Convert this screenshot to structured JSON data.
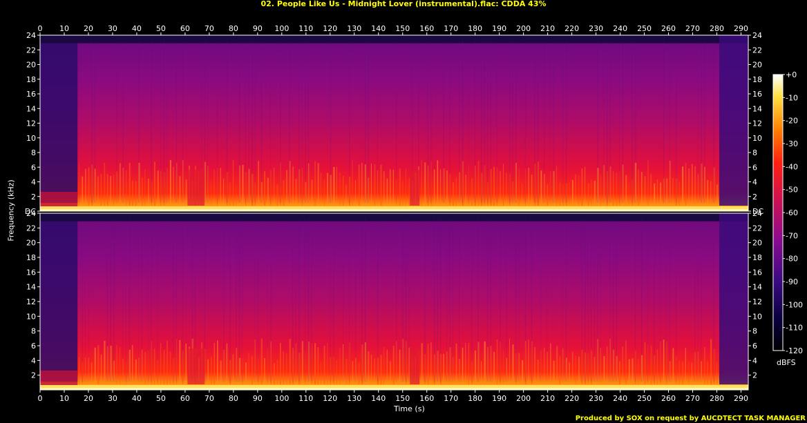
{
  "title": "02. People Like Us - Midnight Lover (instrumental).flac: CDDA 43%",
  "credit": "Produced by SOX on request by AUCDTECT TASK MANAGER",
  "colors": {
    "title": "#ffff00",
    "background": "#000000"
  },
  "chart_data": {
    "type": "heatmap",
    "xlabel": "Time (s)",
    "ylabel": "Frequency (kHz)",
    "colorbar_label": "dBFS",
    "x_ticks": [
      0,
      10,
      20,
      30,
      40,
      50,
      60,
      70,
      80,
      90,
      100,
      110,
      120,
      130,
      140,
      150,
      160,
      170,
      180,
      190,
      200,
      210,
      220,
      230,
      240,
      250,
      260,
      270,
      280,
      290
    ],
    "xlim": [
      0,
      293
    ],
    "channels": [
      {
        "ylim": [
          0,
          24
        ],
        "y_ticks": [
          "DC",
          "2",
          "4",
          "6",
          "8",
          "10",
          "12",
          "14",
          "16",
          "18",
          "20",
          "22",
          "24"
        ]
      },
      {
        "ylim": [
          0,
          24
        ],
        "y_ticks": [
          "2",
          "4",
          "6",
          "8",
          "10",
          "12",
          "14",
          "16",
          "18",
          "20",
          "22",
          "24"
        ]
      }
    ],
    "colorbar_ticks": [
      "+0",
      "-10",
      "-20",
      "-30",
      "-40",
      "-50",
      "-60",
      "-70",
      "-80",
      "-90",
      "-100",
      "-110",
      "-120"
    ],
    "colorbar_range": [
      -120,
      0
    ]
  }
}
